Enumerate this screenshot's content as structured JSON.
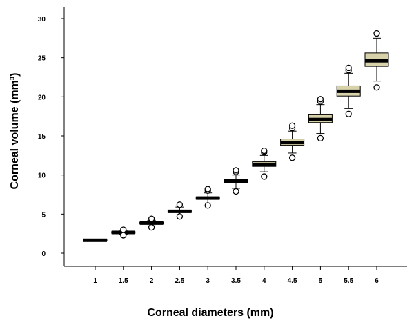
{
  "chart_data": {
    "type": "box",
    "xlabel": "Corneal diameters (mm)",
    "ylabel": "Corneal volume (mm³)",
    "ylim": [
      0,
      30
    ],
    "yticks": [
      0,
      5,
      10,
      15,
      20,
      25,
      30
    ],
    "categories": [
      "1",
      "1.5",
      "2",
      "2.5",
      "3",
      "3.5",
      "4",
      "4.5",
      "5",
      "5.5",
      "6"
    ],
    "box_color": "#d8d2aa",
    "boxes": [
      {
        "category": "1",
        "min": 1.6,
        "q1": 1.6,
        "median": 1.65,
        "q3": 1.7,
        "max": 1.7,
        "outliers": []
      },
      {
        "category": "1.5",
        "min": 2.4,
        "q1": 2.55,
        "median": 2.65,
        "q3": 2.75,
        "max": 2.85,
        "outliers": [
          2.3,
          3.0
        ]
      },
      {
        "category": "2",
        "min": 3.5,
        "q1": 3.75,
        "median": 3.85,
        "q3": 3.95,
        "max": 4.2,
        "outliers": [
          3.3,
          4.4
        ]
      },
      {
        "category": "2.5",
        "min": 4.9,
        "q1": 5.2,
        "median": 5.35,
        "q3": 5.5,
        "max": 5.9,
        "outliers": [
          4.7,
          6.2
        ]
      },
      {
        "category": "3",
        "min": 6.4,
        "q1": 6.9,
        "median": 7.05,
        "q3": 7.2,
        "max": 7.7,
        "outliers": [
          6.1,
          8.0,
          8.2
        ]
      },
      {
        "category": "3.5",
        "min": 8.3,
        "q1": 9.0,
        "median": 9.2,
        "q3": 9.4,
        "max": 10.0,
        "outliers": [
          7.9,
          10.4,
          10.6
        ]
      },
      {
        "category": "4",
        "min": 10.4,
        "q1": 11.1,
        "median": 11.35,
        "q3": 11.7,
        "max": 12.5,
        "outliers": [
          9.8,
          12.9,
          13.1
        ]
      },
      {
        "category": "4.5",
        "min": 12.8,
        "q1": 13.8,
        "median": 14.15,
        "q3": 14.6,
        "max": 15.6,
        "outliers": [
          12.2,
          16.0,
          16.3
        ]
      },
      {
        "category": "5",
        "min": 15.3,
        "q1": 16.7,
        "median": 17.1,
        "q3": 17.7,
        "max": 19.0,
        "outliers": [
          14.7,
          19.4,
          19.7
        ]
      },
      {
        "category": "5.5",
        "min": 18.5,
        "q1": 20.1,
        "median": 20.7,
        "q3": 21.4,
        "max": 23.0,
        "outliers": [
          17.8,
          23.4,
          23.7
        ]
      },
      {
        "category": "6",
        "min": 22.0,
        "q1": 23.9,
        "median": 24.6,
        "q3": 25.6,
        "max": 27.5,
        "outliers": [
          21.2,
          28.1
        ]
      }
    ]
  }
}
